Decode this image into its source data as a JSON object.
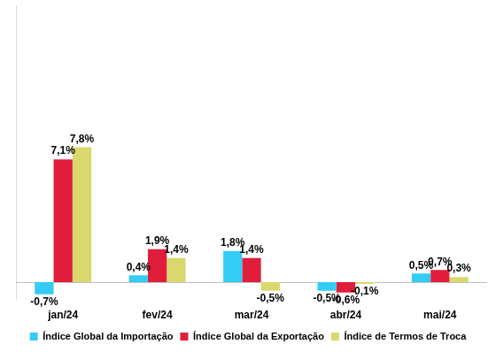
{
  "chart_data": {
    "type": "bar",
    "categories": [
      "jan/24",
      "fev/24",
      "mar/24",
      "abr/24",
      "mai/24"
    ],
    "series": [
      {
        "name": "Índice Global da Importação",
        "color": "#33CCF5",
        "values": [
          -0.7,
          0.4,
          1.8,
          -0.5,
          0.5
        ],
        "value_labels": [
          "-0,7%",
          "0,4%",
          "1,8%",
          "-0,5%",
          "0,5%"
        ]
      },
      {
        "name": "Índice Global da Exportação",
        "color": "#E01E3C",
        "values": [
          7.1,
          1.9,
          1.4,
          -0.6,
          0.7
        ],
        "value_labels": [
          "7,1%",
          "1,9%",
          "1,4%",
          "-0,6%",
          "0,7%"
        ]
      },
      {
        "name": "Índice de Termos de Troca",
        "color": "#D8D86C",
        "values": [
          7.8,
          1.4,
          -0.5,
          -0.1,
          0.3
        ],
        "value_labels": [
          "7,8%",
          "1,4%",
          "-0,5%",
          "-0,1%",
          "0,3%"
        ]
      }
    ],
    "ylim": [
      -1,
      16
    ],
    "grid": false,
    "legend": "bottom",
    "data_labels": true,
    "tick_labels": "x"
  }
}
